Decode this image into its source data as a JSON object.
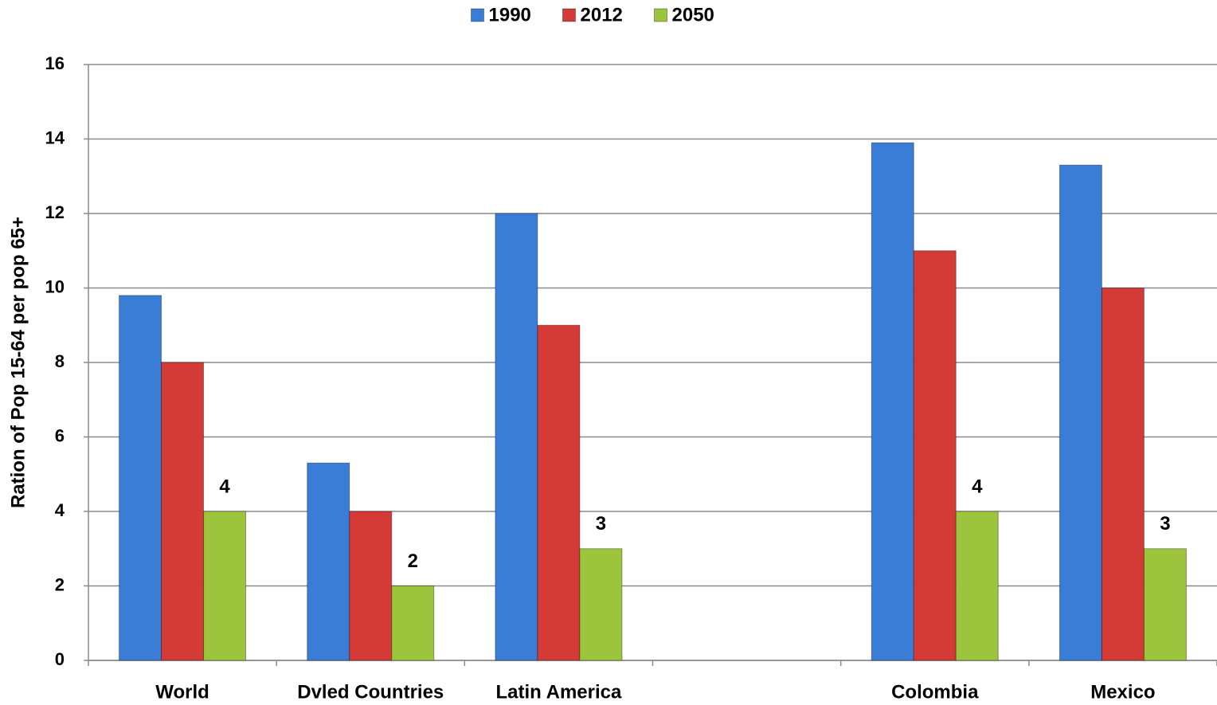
{
  "chart_data": {
    "type": "bar",
    "y_label": "Ration of Pop 15-64 per pop 65+",
    "categories": [
      "World",
      "Dvled Countries",
      "Latin America",
      null,
      "Colombia",
      "Mexico"
    ],
    "series": [
      {
        "name": "1990",
        "color": "#3a7dd6",
        "values": [
          9.8,
          5.3,
          12,
          null,
          13.9,
          13.3
        ]
      },
      {
        "name": "2012",
        "color": "#d43a36",
        "values": [
          8,
          4,
          9,
          null,
          11,
          10
        ]
      },
      {
        "name": "2050",
        "color": "#9cc43c",
        "values": [
          4,
          2,
          3,
          null,
          4,
          3
        ],
        "show_labels": true
      }
    ],
    "ylim": [
      0,
      16
    ],
    "yticks": [
      0,
      2,
      4,
      6,
      8,
      10,
      12,
      14,
      16
    ],
    "grid": true,
    "legend": "top"
  }
}
